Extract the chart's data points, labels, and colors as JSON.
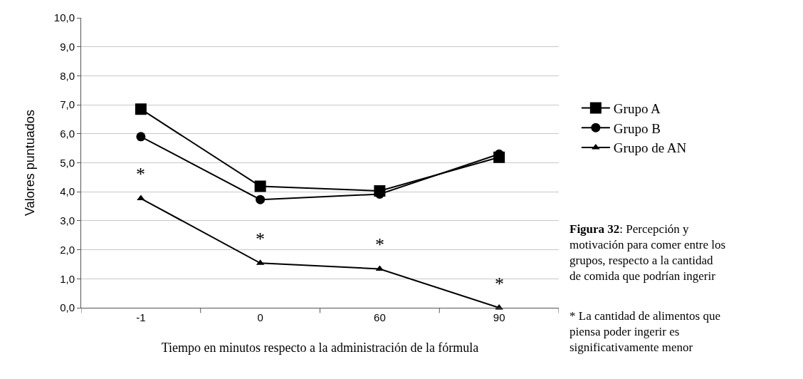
{
  "chart_data": {
    "type": "line",
    "categories": [
      "-1",
      "0",
      "60",
      "90"
    ],
    "xlabel": "Tiempo en minutos respecto a la administración de la fórmula",
    "ylabel": "Valores puntuados",
    "ylim": [
      0,
      10
    ],
    "yticks": [
      {
        "value": 0,
        "label": "0,0"
      },
      {
        "value": 1,
        "label": "1,0"
      },
      {
        "value": 2,
        "label": "2,0"
      },
      {
        "value": 3,
        "label": "3,0"
      },
      {
        "value": 4,
        "label": "4,0"
      },
      {
        "value": 5,
        "label": "5,0"
      },
      {
        "value": 6,
        "label": "6,0"
      },
      {
        "value": 7,
        "label": "7,0"
      },
      {
        "value": 8,
        "label": "8,0"
      },
      {
        "value": 9,
        "label": "9,0"
      },
      {
        "value": 10,
        "label": "10,0"
      }
    ],
    "grid": "y",
    "legend": "right",
    "line_style": "solid",
    "series": [
      {
        "name": "Grupo A",
        "color": "#000000",
        "marker": "square",
        "values": [
          6.85,
          4.19,
          4.03,
          5.19
        ]
      },
      {
        "name": "Grupo B",
        "color": "#000000",
        "marker": "circle",
        "values": [
          5.9,
          3.73,
          3.92,
          5.3
        ]
      },
      {
        "name": "Grupo de AN",
        "color": "#000000",
        "marker": "triangle",
        "values": [
          3.77,
          1.54,
          1.34,
          0
        ]
      }
    ],
    "annotations": [
      {
        "text": "*",
        "x": "-1",
        "y": 3.77
      },
      {
        "text": "*",
        "x": "0",
        "y": 1.54
      },
      {
        "text": "*",
        "x": "60",
        "y": 1.34
      },
      {
        "text": "*",
        "x": "90",
        "y": 0
      },
      "Figura 32: Percepción y motivación para comer entre los grupos, respecto a la cantidad de comida que podrían ingerir",
      "* La cantidad de alimentos que piensa poder ingerir es significativamente menor"
    ]
  }
}
